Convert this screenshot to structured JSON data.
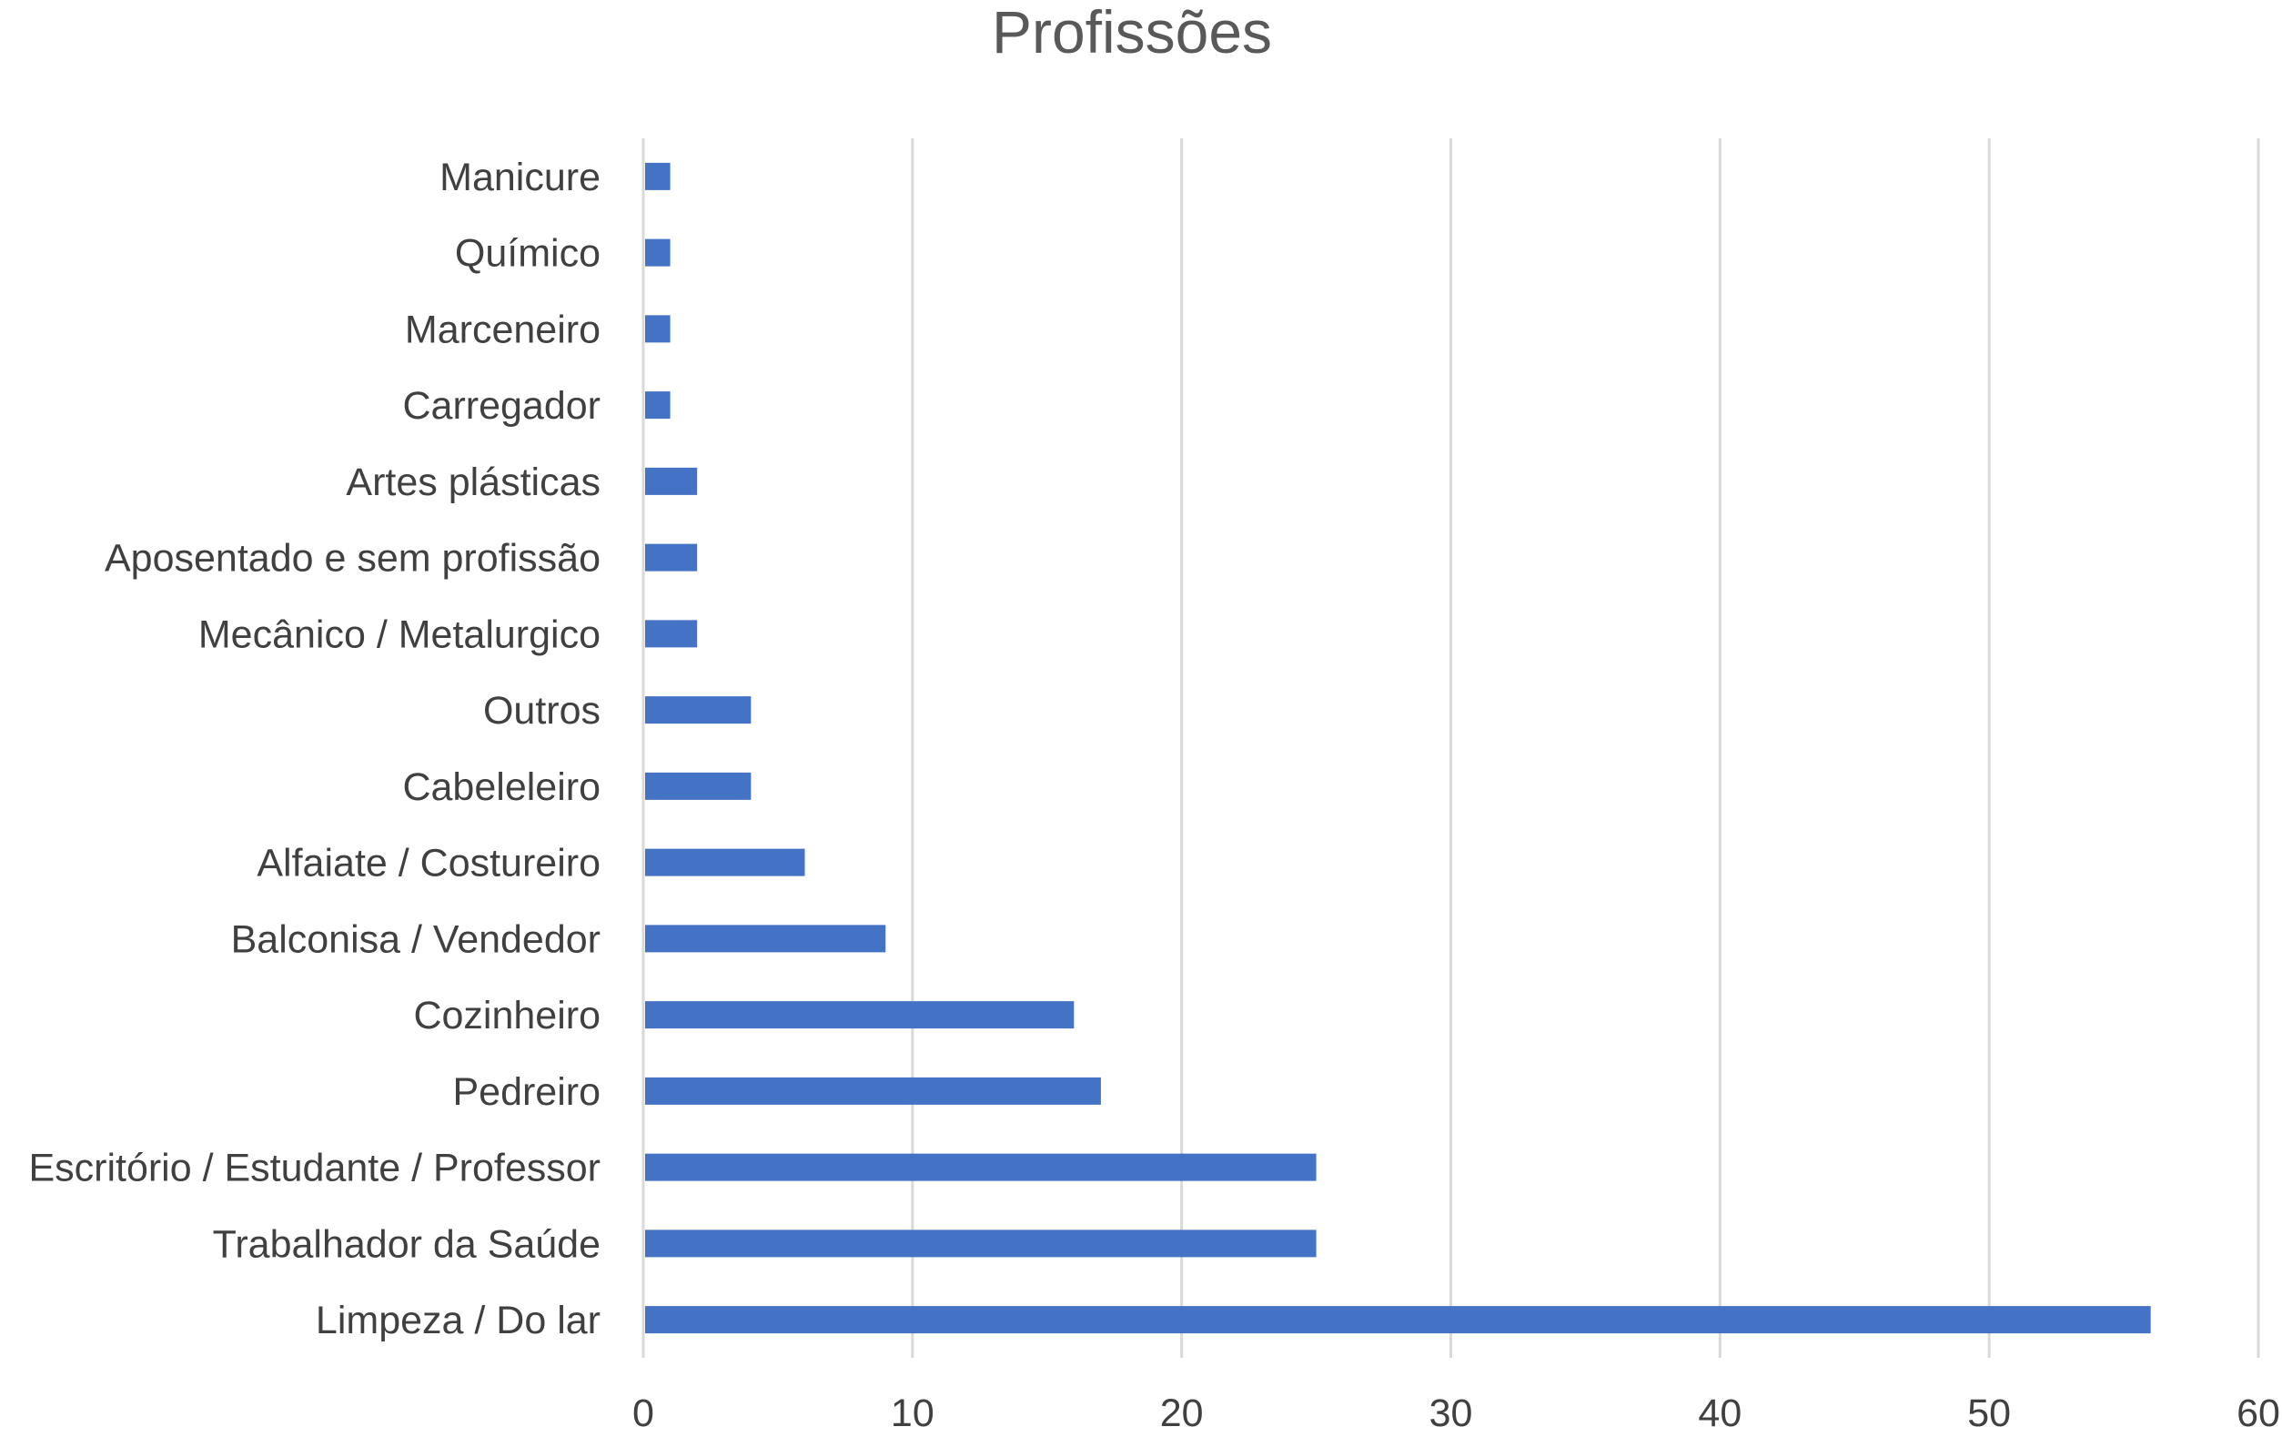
{
  "chart_data": {
    "type": "bar",
    "orientation": "horizontal",
    "title": "Profissões",
    "xlabel": "",
    "ylabel": "",
    "categories": [
      "Manicure",
      "Químico",
      "Marceneiro",
      "Carregador",
      "Artes plásticas",
      "Aposentado e sem profissão",
      "Mecânico / Metalurgico",
      "Outros",
      "Cabeleleiro",
      "Alfaiate / Costureiro",
      "Balconisa / Vendedor",
      "Cozinheiro",
      "Pedreiro",
      "Escritório / Estudante / Professor",
      "Trabalhador da Saúde",
      "Limpeza / Do lar"
    ],
    "values": [
      1,
      1,
      1,
      1,
      2,
      2,
      2,
      4,
      4,
      6,
      9,
      16,
      17,
      25,
      25,
      56
    ],
    "xlim": [
      0,
      60
    ],
    "xticks": [
      "0",
      "10",
      "20",
      "30",
      "40",
      "50",
      "60"
    ],
    "grid": "vertical",
    "legend": "none",
    "colors": {
      "bar": "#4472C4",
      "grid": "#D9D9D9",
      "title": "#595959",
      "labels": "#404040"
    }
  }
}
